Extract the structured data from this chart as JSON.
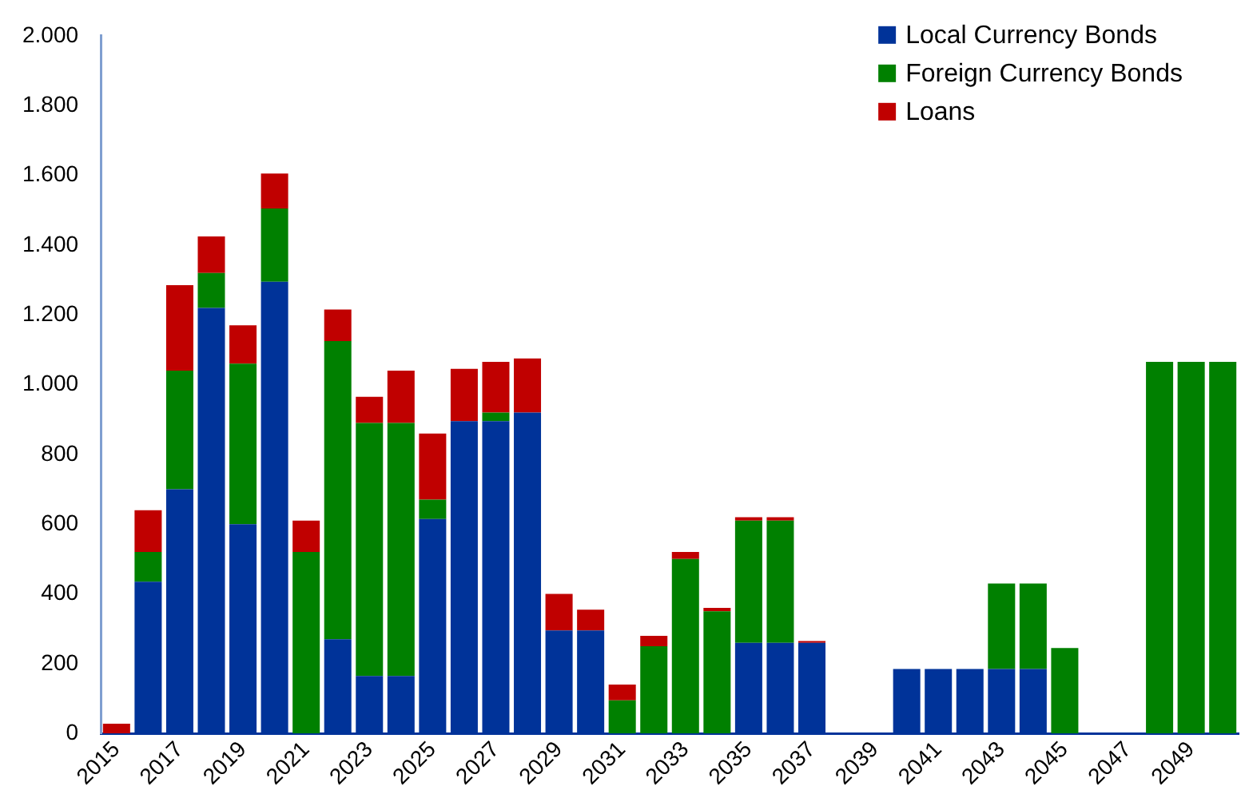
{
  "chart_data": {
    "type": "bar",
    "stacked": true,
    "categories": [
      "2015",
      null,
      "2017",
      null,
      "2019",
      null,
      "2021",
      null,
      "2023",
      null,
      "2025",
      null,
      "2027",
      null,
      "2029",
      null,
      "2031",
      null,
      "2033",
      null,
      "2035",
      null,
      "2037",
      null,
      "2039",
      null,
      "2041",
      null,
      "2043",
      null,
      "2045",
      null,
      "2047",
      null,
      "2049",
      null
    ],
    "series": [
      {
        "name": "Local Currency Bonds",
        "color": "#003399",
        "values": [
          null,
          435,
          700,
          1220,
          600,
          1295,
          null,
          270,
          165,
          165,
          615,
          895,
          895,
          920,
          295,
          295,
          null,
          null,
          null,
          null,
          260,
          260,
          260,
          null,
          null,
          185,
          185,
          185,
          185,
          185,
          null,
          null,
          null,
          null,
          null,
          null
        ]
      },
      {
        "name": "Foreign Currency Bonds",
        "color": "#008000",
        "values": [
          null,
          85,
          340,
          100,
          460,
          210,
          520,
          855,
          725,
          725,
          55,
          null,
          25,
          null,
          null,
          null,
          95,
          250,
          500,
          350,
          350,
          350,
          null,
          null,
          null,
          null,
          null,
          null,
          245,
          245,
          245,
          null,
          null,
          1065,
          1065,
          1065
        ]
      },
      {
        "name": "Loans",
        "color": "#c00000",
        "values": [
          28,
          120,
          245,
          105,
          110,
          100,
          90,
          90,
          75,
          150,
          190,
          150,
          145,
          155,
          105,
          60,
          45,
          30,
          20,
          10,
          10,
          10,
          5,
          null,
          null,
          null,
          null,
          null,
          null,
          null,
          null,
          null,
          null,
          null,
          null,
          null
        ]
      }
    ],
    "ylim": [
      0,
      2000
    ],
    "yticks": [
      0,
      200,
      400,
      600,
      800,
      {
        "value": 1000,
        "label": "1.000"
      },
      {
        "value": 1200,
        "label": "1.200"
      },
      {
        "value": 1400,
        "label": "1.400"
      },
      {
        "value": 1600,
        "label": "1.600"
      },
      {
        "value": 1800,
        "label": "1.800"
      },
      {
        "value": 2000,
        "label": "2.000"
      }
    ],
    "grid": false,
    "legend": "top right"
  }
}
